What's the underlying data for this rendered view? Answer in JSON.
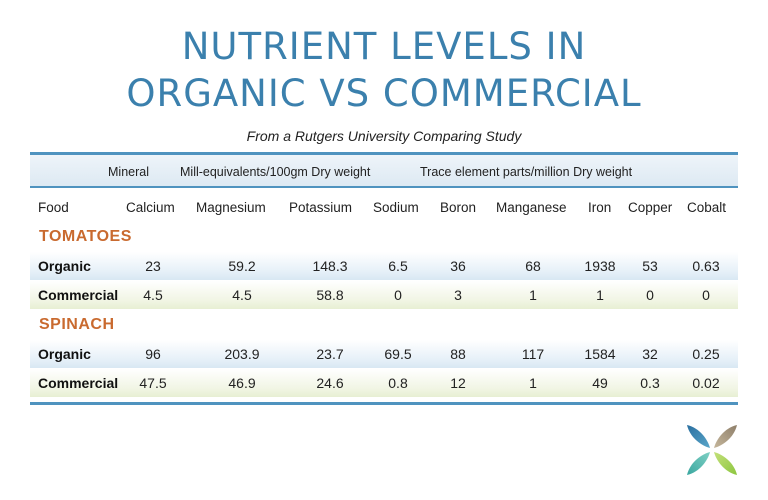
{
  "title_line1": "NUTRIENT LEVELS IN",
  "title_line2": "ORGANIC VS COMMERCIAL",
  "subtitle": "From a Rutgers University Comparing Study",
  "header": {
    "mineral": "Mineral",
    "mill_equivalents": "Mill-equivalents/100gm Dry weight",
    "trace": "Trace element parts/million Dry weight"
  },
  "columns": [
    "Food",
    "Calcium",
    "Magnesium",
    "Potassium",
    "Sodium",
    "Boron",
    "Manganese",
    "Iron",
    "Copper",
    "Cobalt"
  ],
  "sections": [
    {
      "name": "TOMATOES",
      "rows": [
        {
          "label": "Organic",
          "values": [
            "23",
            "59.2",
            "148.3",
            "6.5",
            "36",
            "68",
            "1938",
            "53",
            "0.63"
          ]
        },
        {
          "label": "Commercial",
          "values": [
            "4.5",
            "4.5",
            "58.8",
            "0",
            "3",
            "1",
            "1",
            "0",
            "0"
          ]
        }
      ]
    },
    {
      "name": "SPINACH",
      "rows": [
        {
          "label": "Organic",
          "values": [
            "96",
            "203.9",
            "23.7",
            "69.5",
            "88",
            "117",
            "1584",
            "32",
            "0.25"
          ]
        },
        {
          "label": "Commercial",
          "values": [
            "47.5",
            "46.9",
            "24.6",
            "0.8",
            "12",
            "1",
            "49",
            "0.3",
            "0.02"
          ]
        }
      ]
    }
  ],
  "colors": {
    "title": "#3b80ad",
    "section": "#c96a2f",
    "rule": "#4f93bf"
  },
  "logo_icon": "four-leaf-logo-icon"
}
